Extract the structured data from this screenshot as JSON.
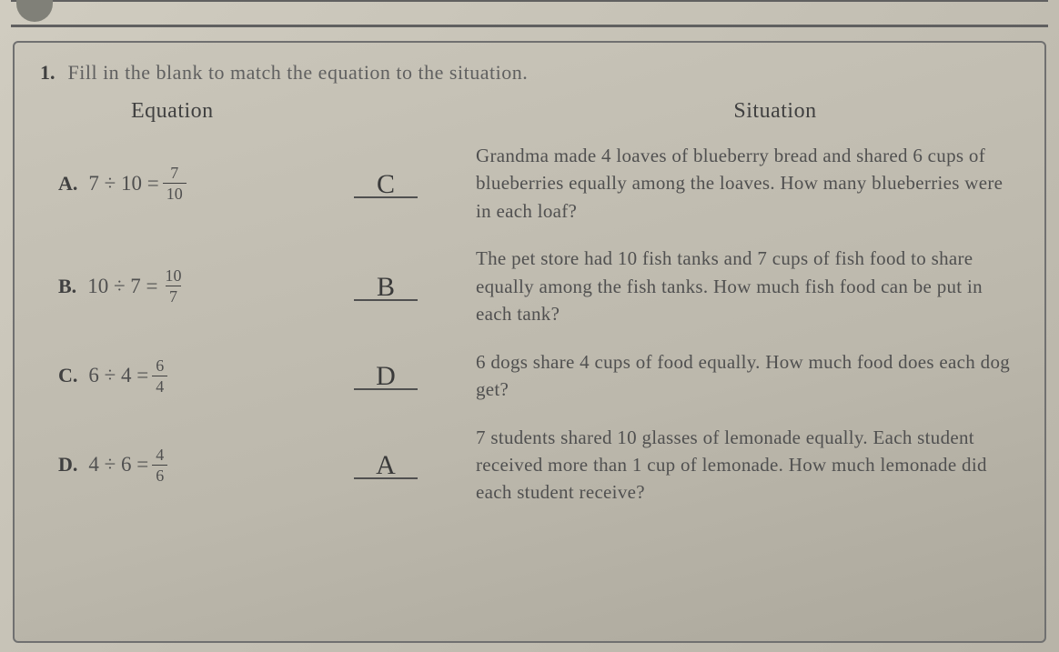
{
  "question": {
    "number": "1.",
    "text": "Fill in the blank to match the equation to the situation."
  },
  "headers": {
    "equation": "Equation",
    "situation": "Situation"
  },
  "rows": [
    {
      "label": "A.",
      "eq_left": "7 ÷ 10 =",
      "frac_num": "7",
      "frac_den": "10",
      "answer": "C",
      "situation": "Grandma made 4 loaves of blueberry bread and shared 6 cups of blueberries equally among the loaves. How many blueberries were in each loaf?"
    },
    {
      "label": "B.",
      "eq_left": "10 ÷ 7 =",
      "frac_num": "10",
      "frac_den": "7",
      "answer": "B",
      "situation": "The pet store had 10 fish tanks and 7 cups of fish food to share equally among the fish tanks. How much fish food can be put in each tank?"
    },
    {
      "label": "C.",
      "eq_left": "6 ÷ 4 =",
      "frac_num": "6",
      "frac_den": "4",
      "answer": "D",
      "situation": "6 dogs share 4 cups of food equally. How much food does each dog get?"
    },
    {
      "label": "D.",
      "eq_left": "4 ÷ 6 =",
      "frac_num": "4",
      "frac_den": "6",
      "answer": "A",
      "situation": "7 students shared 10 glasses of lemonade equally. Each student received more than 1 cup of lemonade. How much lemonade did each student receive?"
    }
  ]
}
